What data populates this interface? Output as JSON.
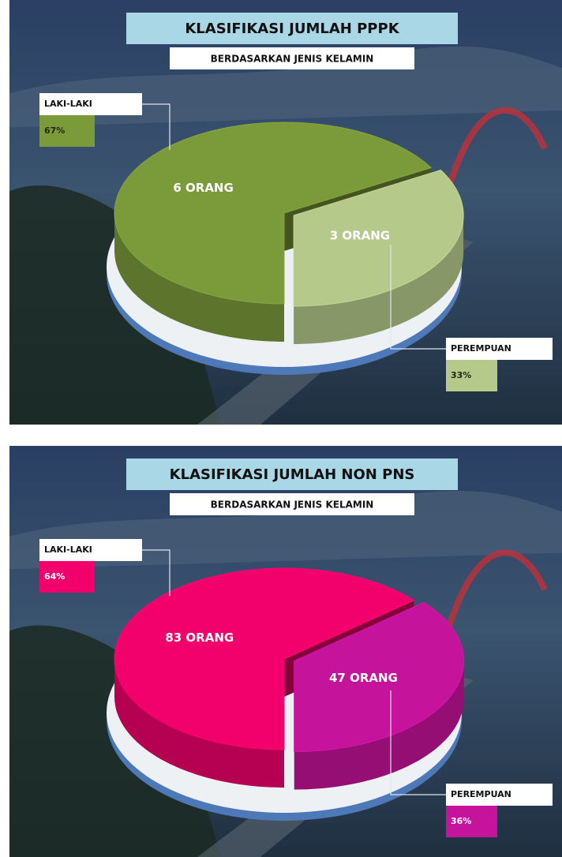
{
  "chart_data": [
    {
      "type": "pie",
      "title": "KLASIFIKASI JUMLAH PPPK",
      "subtitle": "BERDASARKAN JENIS KELAMIN",
      "categories": [
        "LAKI-LAKI",
        "PEREMPUAN"
      ],
      "values": [
        6,
        3
      ],
      "value_labels": [
        "6 ORANG",
        "3 ORANG"
      ],
      "percents": [
        67,
        33
      ],
      "percent_labels": [
        "67%",
        "33%"
      ],
      "colors": [
        "#7b9b3a",
        "#b4c98a"
      ]
    },
    {
      "type": "pie",
      "title": "KLASIFIKASI JUMLAH NON PNS",
      "subtitle": "BERDASARKAN JENIS KELAMIN",
      "categories": [
        "LAKI-LAKI",
        "PEREMPUAN"
      ],
      "values": [
        83,
        47
      ],
      "value_labels": [
        "83 ORANG",
        "47 ORANG"
      ],
      "percents": [
        64,
        36
      ],
      "percent_labels": [
        "64%",
        "36%"
      ],
      "colors": [
        "#f2006c",
        "#c5139b"
      ]
    }
  ]
}
